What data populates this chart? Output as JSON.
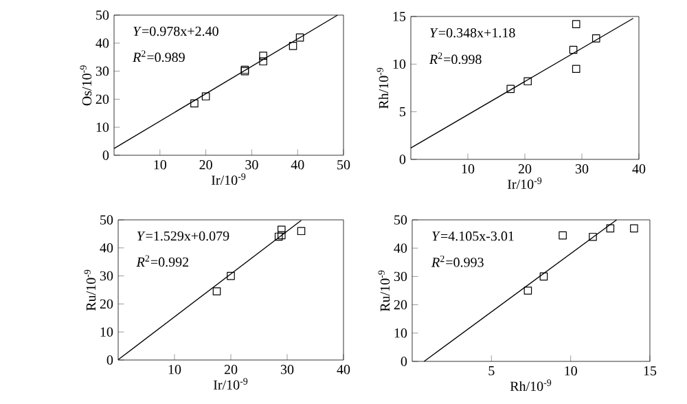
{
  "chart_data": [
    {
      "type": "scatter",
      "xlabel": "Ir/10$^{-9}$",
      "ylabel": "Os/10$^{-9}$",
      "xlim": [
        0,
        50
      ],
      "ylim": [
        0,
        50
      ],
      "xticks": [
        10,
        20,
        30,
        40,
        50
      ],
      "yticks": [
        0,
        10,
        20,
        30,
        40,
        50
      ],
      "annotations": [
        "*Y*=0.978x+2.40",
        "*R*$^{2}$=0.989"
      ],
      "series": [
        {
          "marker": "square",
          "color": "#000000",
          "x": [
            17.5,
            20,
            28.5,
            28.5,
            32.5,
            32.5,
            39,
            40.5
          ],
          "values": [
            18.5,
            21,
            30.5,
            30,
            35.5,
            33.5,
            39,
            42
          ]
        },
        {
          "type": "line",
          "marker": "none",
          "color": "#000000",
          "x": [
            0,
            48.7
          ],
          "values": [
            2.4,
            50
          ]
        }
      ]
    },
    {
      "type": "scatter",
      "xlabel": "Ir/10$^{-9}$",
      "ylabel": "Rh/10$^{-9}$",
      "xlim": [
        0,
        40
      ],
      "ylim": [
        0,
        15
      ],
      "xticks": [
        10,
        20,
        30,
        40
      ],
      "yticks": [
        0,
        5,
        10,
        15
      ],
      "annotations": [
        "*Y*=0.348x+1.18",
        "*R*$^{2}$=0.998"
      ],
      "series": [
        {
          "marker": "square",
          "color": "#000000",
          "x": [
            17.5,
            20.5,
            28.5,
            29,
            29,
            32.5
          ],
          "values": [
            7.4,
            8.2,
            11.5,
            14.2,
            9.5,
            12.7
          ]
        },
        {
          "type": "line",
          "marker": "none",
          "color": "#000000",
          "x": [
            0,
            39
          ],
          "values": [
            1.2,
            14.8
          ]
        }
      ]
    },
    {
      "type": "scatter",
      "xlabel": "Ir/10$^{-9}$",
      "ylabel": "Ru/10$^{-9}$",
      "xlim": [
        0,
        40
      ],
      "ylim": [
        0,
        50
      ],
      "xticks": [
        10,
        20,
        30,
        40
      ],
      "yticks": [
        0,
        10,
        20,
        30,
        40,
        50
      ],
      "annotations": [
        "*Y*=1.529x+0.079",
        "*R*$^{2}$=0.992"
      ],
      "series": [
        {
          "marker": "square",
          "color": "#000000",
          "x": [
            17.5,
            20,
            28.5,
            29,
            29,
            32.5
          ],
          "values": [
            24.5,
            30,
            44,
            44.5,
            46.5,
            46
          ]
        },
        {
          "type": "line",
          "marker": "none",
          "color": "#000000",
          "x": [
            0,
            32.5
          ],
          "values": [
            0.1,
            49.8
          ]
        }
      ]
    },
    {
      "type": "scatter",
      "xlabel": "Rh/10$^{-9}$",
      "ylabel": "Ru/10$^{-9}$",
      "xlim": [
        0,
        15
      ],
      "ylim": [
        0,
        50
      ],
      "xticks": [
        5,
        10,
        15
      ],
      "yticks": [
        0,
        10,
        20,
        30,
        40,
        50
      ],
      "annotations": [
        "*Y*=4.105x-3.01",
        "*R*$^{2}$=0.993"
      ],
      "series": [
        {
          "marker": "square",
          "color": "#000000",
          "x": [
            7.3,
            8.3,
            9.5,
            11.4,
            12.5,
            14
          ],
          "values": [
            25,
            30,
            44.5,
            44,
            47,
            47
          ]
        },
        {
          "type": "line",
          "marker": "none",
          "color": "#000000",
          "x": [
            0.75,
            12.9
          ],
          "values": [
            0,
            50
          ]
        }
      ]
    }
  ]
}
